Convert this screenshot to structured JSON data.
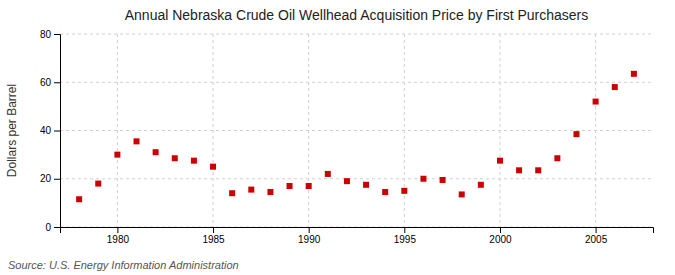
{
  "chart_data": {
    "type": "scatter",
    "title": "Annual Nebraska Crude Oil Wellhead Acquisition Price by First Purchasers",
    "ylabel": "Dollars per Barrel",
    "annotations": [
      "Source: U.S. Energy Information Administration"
    ],
    "x": [
      1978,
      1979,
      1980,
      1981,
      1982,
      1983,
      1984,
      1985,
      1986,
      1987,
      1988,
      1989,
      1990,
      1991,
      1992,
      1993,
      1994,
      1995,
      1996,
      1997,
      1998,
      1999,
      2000,
      2001,
      2002,
      2003,
      2004,
      2005,
      2006,
      2007
    ],
    "values": [
      11.5,
      18.0,
      30.0,
      35.5,
      31.0,
      28.5,
      27.5,
      25.0,
      14.0,
      15.5,
      14.5,
      17.0,
      17.0,
      22.0,
      19.0,
      17.5,
      14.5,
      15.0,
      20.0,
      19.5,
      13.5,
      17.5,
      27.5,
      23.5,
      23.5,
      28.5,
      38.5,
      52.0,
      58.0,
      63.5
    ],
    "color": "#cc0000",
    "marker": "square",
    "xlim": [
      1977,
      2008
    ],
    "xticks": [
      1980,
      1985,
      1990,
      1995,
      2000,
      2005
    ],
    "ylim": [
      0,
      80
    ],
    "yticks": [
      0,
      20,
      40,
      60,
      80
    ],
    "grid": true
  }
}
